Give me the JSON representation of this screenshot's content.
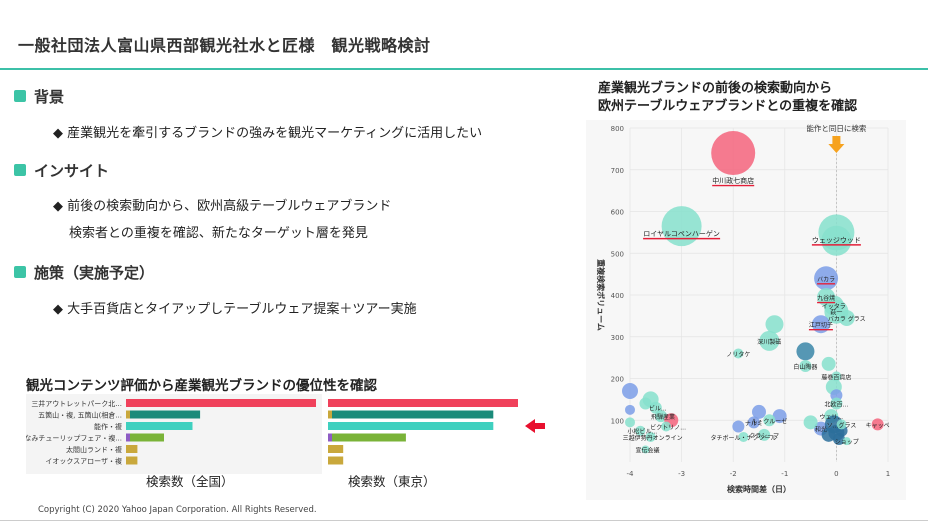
{
  "header": {
    "title": "一般社団法人富山県西部観光社水と匠様　観光戦略検討"
  },
  "sections": [
    {
      "heading": "背景",
      "lines": [
        "◆ 産業観光を牽引するブランドの強みを観光マーケティングに活用したい"
      ]
    },
    {
      "heading": "インサイト",
      "lines": [
        "◆ 前後の検索動向から、欧州高級テーブルウェアブランド",
        "検索者との重複を確認、新たなターゲット層を発見"
      ]
    },
    {
      "heading": "施策（実施予定）",
      "lines": [
        "◆ 大手百貨店とタイアップしテーブルウェア提案＋ツアー実施"
      ]
    }
  ],
  "bar_chart": {
    "title": "観光コンテンツ評価から産業観光ブランドの優位性を確認",
    "categories": [
      "三井アウトレットパーク北...",
      "五箇山・複, 五箇山(相倉...",
      "能作・複",
      "となみチューリップフェア・複...",
      "太閤山ランド・複",
      "イオックスアローザ・複"
    ],
    "panels": [
      {
        "label": "検索数（全国）",
        "values": [
          100,
          39,
          35,
          20,
          6,
          6
        ]
      },
      {
        "label": "検索数（東京）",
        "values": [
          100,
          87,
          87,
          41,
          8,
          8
        ]
      }
    ],
    "colors": {
      "red": "#f0415b",
      "teal": "#1b8b7a",
      "aqua": "#3fd0bf",
      "olive": "#7ab338",
      "gold": "#c9a83c",
      "purple": "#8e5cc4"
    },
    "arrow_color": "#e8102e"
  },
  "chart_data": {
    "type": "scatter",
    "title": "産業観光ブランドの前後の検索動向から\n欧州テーブルウェアブランドとの重複を確認",
    "xlabel": "検索時間差（日）",
    "ylabel": "重複検索ボリューム",
    "xlim": [
      -4,
      1
    ],
    "ylim": [
      0,
      800
    ],
    "xticks": [
      -4,
      -3,
      -2,
      -1,
      0,
      1
    ],
    "yticks": [
      100,
      200,
      300,
      400,
      500,
      600,
      700,
      800
    ],
    "grid": true,
    "annotation": "能作と同日に検索",
    "annotation_color": "#f6a21e",
    "points": [
      {
        "label": "中川政七商店",
        "x": -2.0,
        "y": 740,
        "size": 22,
        "color": "#f4647c",
        "underline": true
      },
      {
        "label": "ロイヤルコペンハーゲン",
        "x": -3.0,
        "y": 565,
        "size": 20,
        "color": "#86e0cd",
        "underline": true
      },
      {
        "label": "ウェッジウッド",
        "x": 0.0,
        "y": 550,
        "size": 18,
        "color": "#86e0cd",
        "underline": true
      },
      {
        "label": "",
        "x": 0.0,
        "y": 530,
        "size": 15,
        "color": "#86e0cd"
      },
      {
        "label": "バカラ",
        "x": -0.2,
        "y": 440,
        "size": 12,
        "color": "#7b9ee8",
        "underline": true
      },
      {
        "label": "九谷焼",
        "x": -0.2,
        "y": 395,
        "size": 9,
        "color": "#86e0cd",
        "underline": true
      },
      {
        "label": "イッタラ",
        "x": -0.05,
        "y": 375,
        "size": 10,
        "color": "#86e0cd"
      },
      {
        "label": "萩一",
        "x": 0.0,
        "y": 360,
        "size": 12,
        "color": "#86e0cd"
      },
      {
        "label": "バカラ グラス",
        "x": 0.2,
        "y": 345,
        "size": 8,
        "color": "#86e0cd"
      },
      {
        "label": "江戸切子",
        "x": -0.3,
        "y": 330,
        "size": 9,
        "color": "#7b9ee8",
        "underline": true
      },
      {
        "label": "",
        "x": -1.2,
        "y": 330,
        "size": 9,
        "color": "#86e0cd"
      },
      {
        "label": "深川製磁",
        "x": -1.3,
        "y": 290,
        "size": 10,
        "color": "#86e0cd"
      },
      {
        "label": "ノリタケ",
        "x": -1.9,
        "y": 260,
        "size": 5,
        "color": "#86e0cd"
      },
      {
        "label": "",
        "x": -0.6,
        "y": 265,
        "size": 9,
        "color": "#3a86a8"
      },
      {
        "label": "白山陶器",
        "x": -0.6,
        "y": 230,
        "size": 6,
        "color": "#86e0cd"
      },
      {
        "label": "",
        "x": -0.15,
        "y": 235,
        "size": 7,
        "color": "#86e0cd"
      },
      {
        "label": "藤巻百貨店",
        "x": 0.0,
        "y": 205,
        "size": 5,
        "color": "#86e0cd"
      },
      {
        "label": "",
        "x": -0.05,
        "y": 180,
        "size": 8,
        "color": "#86e0cd"
      },
      {
        "label": "",
        "x": 0.0,
        "y": 160,
        "size": 6,
        "color": "#7b9ee8"
      },
      {
        "label": "北欧百...",
        "x": 0.0,
        "y": 140,
        "size": 6,
        "color": "#86e0cd"
      },
      {
        "label": "",
        "x": -4.0,
        "y": 170,
        "size": 8,
        "color": "#7b9ee8"
      },
      {
        "label": "",
        "x": -3.6,
        "y": 150,
        "size": 8,
        "color": "#86e0cd"
      },
      {
        "label": "",
        "x": -3.7,
        "y": 140,
        "size": 6,
        "color": "#86e0cd"
      },
      {
        "label": "ビル...",
        "x": -3.5,
        "y": 130,
        "size": 6,
        "color": "#86e0cd"
      },
      {
        "label": "飛騨産業",
        "x": -3.4,
        "y": 110,
        "size": 6,
        "color": "#86e0cd"
      },
      {
        "label": "",
        "x": -3.2,
        "y": 100,
        "size": 7,
        "color": "#f4647c"
      },
      {
        "label": "ビクトリノ...",
        "x": -3.3,
        "y": 85,
        "size": 5,
        "color": "#86e0cd"
      },
      {
        "label": "小松ビル...",
        "x": -3.8,
        "y": 75,
        "size": 5,
        "color": "#86e0cd"
      },
      {
        "label": "三越伊勢丹オンライン",
        "x": -3.6,
        "y": 60,
        "size": 5,
        "color": "#86e0cd"
      },
      {
        "label": "宣伝会議",
        "x": -3.7,
        "y": 30,
        "size": 4,
        "color": "#86e0cd"
      },
      {
        "label": "ナルミ",
        "x": -1.6,
        "y": 95,
        "size": 6,
        "color": "#7b9ee8"
      },
      {
        "label": "",
        "x": -1.5,
        "y": 120,
        "size": 7,
        "color": "#7b9ee8"
      },
      {
        "label": "",
        "x": -1.1,
        "y": 110,
        "size": 7,
        "color": "#7b9ee8"
      },
      {
        "label": "ル・クルーゼ",
        "x": -1.3,
        "y": 100,
        "size": 6,
        "color": "#86e0cd"
      },
      {
        "label": "タチボール・ナクツール",
        "x": -1.8,
        "y": 60,
        "size": 5,
        "color": "#86e0cd"
      },
      {
        "label": "クラシーマ",
        "x": -1.4,
        "y": 65,
        "size": 6,
        "color": "#86e0cd"
      },
      {
        "label": "",
        "x": -1.9,
        "y": 85,
        "size": 6,
        "color": "#7b9ee8"
      },
      {
        "label": "ウェリ...",
        "x": -0.1,
        "y": 110,
        "size": 7,
        "color": "#86e0cd"
      },
      {
        "label": "和光",
        "x": -0.3,
        "y": 80,
        "size": 7,
        "color": "#7b9ee8"
      },
      {
        "label": "",
        "x": -0.05,
        "y": 90,
        "size": 9,
        "color": "#2b6e9b"
      },
      {
        "label": "",
        "x": 0.0,
        "y": 70,
        "size": 8,
        "color": "#2b6e9b"
      },
      {
        "label": "",
        "x": -0.15,
        "y": 65,
        "size": 7,
        "color": "#2b6e9b"
      },
      {
        "label": "",
        "x": 0.1,
        "y": 75,
        "size": 6,
        "color": "#2b6e9b"
      },
      {
        "label": "",
        "x": 0.05,
        "y": 55,
        "size": 6,
        "color": "#2b6e9b"
      },
      {
        "label": "ソ...グラス",
        "x": 0.1,
        "y": 90,
        "size": 5,
        "color": "#86e0cd"
      },
      {
        "label": "ショップ",
        "x": 0.2,
        "y": 50,
        "size": 4,
        "color": "#86e0cd"
      },
      {
        "label": "キャッペ",
        "x": 0.8,
        "y": 90,
        "size": 6,
        "color": "#f4647c"
      },
      {
        "label": "",
        "x": -0.5,
        "y": 95,
        "size": 7,
        "color": "#86e0cd"
      },
      {
        "label": "",
        "x": -4.0,
        "y": 95,
        "size": 5,
        "color": "#86e0cd"
      },
      {
        "label": "",
        "x": -4.0,
        "y": 125,
        "size": 5,
        "color": "#7b9ee8"
      }
    ]
  },
  "copyright": "Copyright (C) 2020 Yahoo Japan Corporation. All Rights Reserved."
}
